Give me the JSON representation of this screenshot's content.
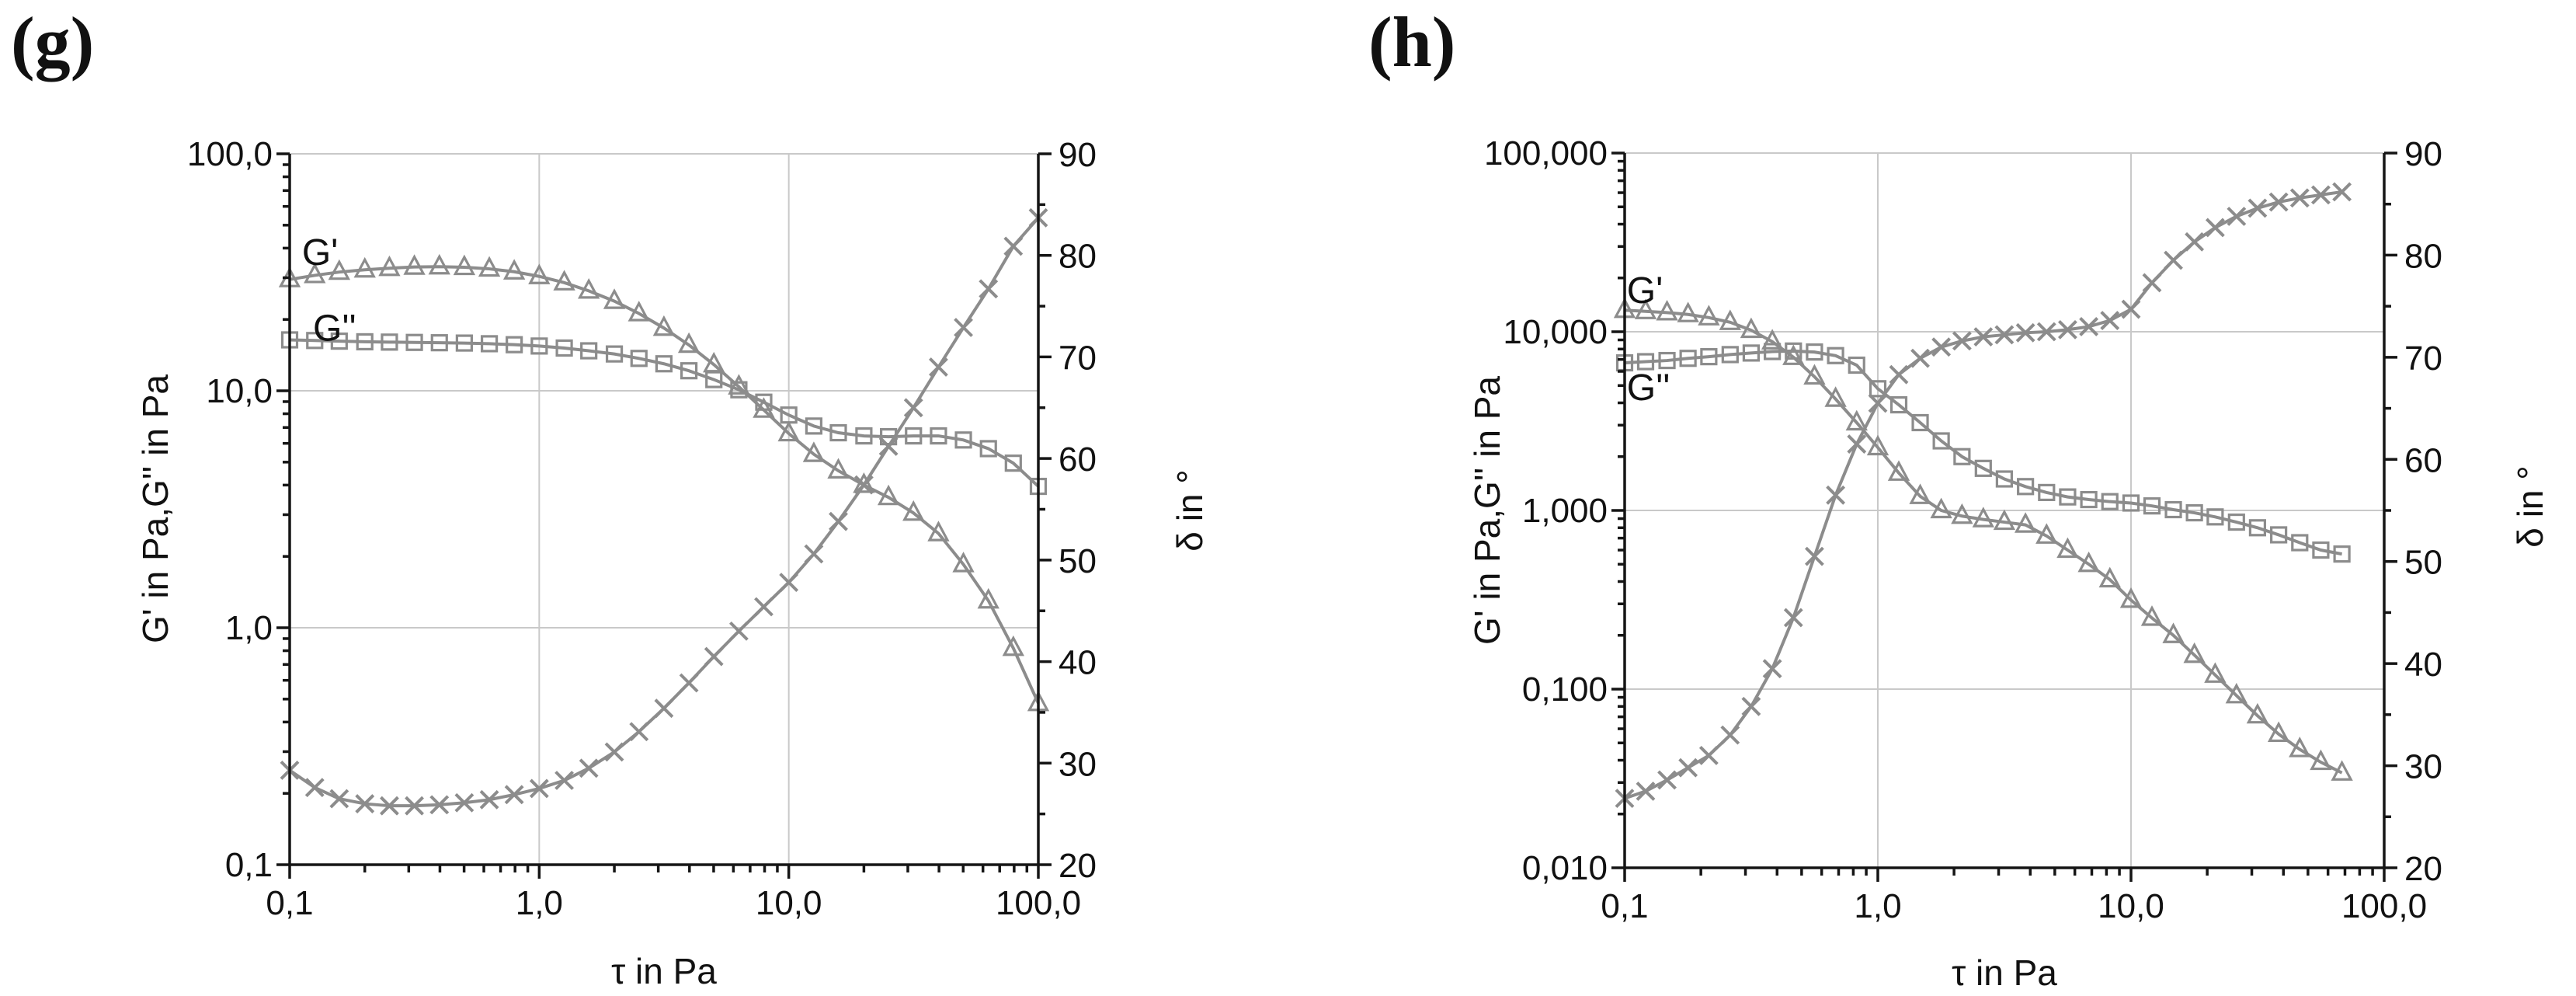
{
  "styles": {
    "background": "#ffffff",
    "series_color": "#8c8c8c",
    "axis_color": "#151515",
    "grid_color": "#c9c9c9",
    "text_color": "#111111"
  },
  "chart_data": [
    {
      "type": "line",
      "panel_label": "(g)",
      "xlabel": "τ in Pa",
      "ylabel_left": "G' in Pa,G'' in Pa",
      "ylabel_right": "δ in °",
      "x_axis": {
        "scale": "log",
        "min": 0.1,
        "max": 100,
        "tick_values": [
          0.1,
          1,
          10,
          100
        ],
        "tick_labels": [
          "0,1",
          "1,0",
          "10,0",
          "100,0"
        ],
        "gridline_values": [
          1,
          10
        ]
      },
      "y_left_axis": {
        "scale": "log",
        "min": 0.1,
        "max": 100,
        "tick_values": [
          100,
          10,
          1,
          0.1
        ],
        "tick_labels": [
          "100,0",
          "10,0",
          "1,0",
          "0,1"
        ],
        "gridline_values": [
          100,
          10,
          1
        ]
      },
      "y_right_axis": {
        "scale": "linear",
        "min": 20,
        "max": 90,
        "tick_step": 10,
        "minor_step": 5,
        "tick_values": [
          90,
          80,
          70,
          60,
          50,
          40,
          30,
          20
        ],
        "tick_labels": [
          "90",
          "80",
          "70",
          "60",
          "50",
          "40",
          "30",
          "20"
        ]
      },
      "annotations": [
        {
          "text": "G'",
          "x": 0.112,
          "y": 34
        },
        {
          "text": "G''",
          "x": 0.124,
          "y": 16.3
        }
      ],
      "series": [
        {
          "name": "G-prime",
          "label": "G'",
          "marker": "triangle",
          "y_axis": "left",
          "x": [
            0.1,
            0.126,
            0.158,
            0.2,
            0.251,
            0.316,
            0.398,
            0.501,
            0.631,
            0.794,
            1.0,
            1.26,
            1.58,
            2.0,
            2.51,
            3.16,
            3.98,
            5.01,
            6.31,
            7.94,
            10,
            12.6,
            15.8,
            20,
            25.1,
            31.6,
            39.8,
            50.1,
            63.1,
            79.4,
            100
          ],
          "y": [
            29.5,
            30.7,
            31.7,
            32.4,
            32.9,
            33.3,
            33.4,
            33.2,
            32.7,
            31.8,
            30.4,
            28.6,
            26.4,
            23.9,
            21.2,
            18.4,
            15.6,
            12.9,
            10.4,
            8.3,
            6.6,
            5.4,
            4.6,
            4.0,
            3.55,
            3.05,
            2.5,
            1.85,
            1.3,
            0.82,
            0.48
          ]
        },
        {
          "name": "G-double-prime",
          "label": "G''",
          "marker": "square",
          "y_axis": "left",
          "x": [
            0.1,
            0.126,
            0.158,
            0.2,
            0.251,
            0.316,
            0.398,
            0.501,
            0.631,
            0.794,
            1.0,
            1.26,
            1.58,
            2.0,
            2.51,
            3.16,
            3.98,
            5.01,
            6.31,
            7.94,
            10,
            12.6,
            15.8,
            20,
            25.1,
            31.6,
            39.8,
            50.1,
            63.1,
            79.4,
            100
          ],
          "y": [
            16.4,
            16.3,
            16.2,
            16.1,
            16.05,
            16.0,
            15.95,
            15.9,
            15.8,
            15.65,
            15.45,
            15.15,
            14.75,
            14.3,
            13.7,
            13.0,
            12.15,
            11.15,
            10.1,
            8.95,
            7.9,
            7.1,
            6.65,
            6.45,
            6.4,
            6.45,
            6.45,
            6.2,
            5.7,
            4.95,
            3.95
          ]
        },
        {
          "name": "delta",
          "label": "δ",
          "marker": "x",
          "y_axis": "right",
          "x": [
            0.1,
            0.126,
            0.158,
            0.2,
            0.251,
            0.316,
            0.398,
            0.501,
            0.631,
            0.794,
            1.0,
            1.26,
            1.58,
            2.0,
            2.51,
            3.16,
            3.98,
            5.01,
            6.31,
            7.94,
            10,
            12.6,
            15.8,
            20,
            25.1,
            31.6,
            39.8,
            50.1,
            63.1,
            79.4,
            100
          ],
          "y": [
            29.3,
            27.6,
            26.5,
            26.0,
            25.8,
            25.8,
            25.9,
            26.1,
            26.4,
            26.9,
            27.5,
            28.3,
            29.5,
            31.1,
            33.1,
            35.4,
            37.9,
            40.5,
            43.0,
            45.4,
            47.8,
            50.6,
            53.8,
            57.4,
            61.2,
            65.0,
            69.0,
            72.9,
            76.7,
            80.9,
            83.7
          ]
        }
      ]
    },
    {
      "type": "line",
      "panel_label": "(h)",
      "xlabel": "τ in Pa",
      "ylabel_left": "G' in Pa,G'' in Pa",
      "ylabel_right": "δ in °",
      "x_axis": {
        "scale": "log",
        "min": 0.1,
        "max": 100,
        "tick_values": [
          0.1,
          1,
          10,
          100
        ],
        "tick_labels": [
          "0,1",
          "1,0",
          "10,0",
          "100,0"
        ],
        "gridline_values": [
          1,
          10
        ]
      },
      "y_left_axis": {
        "scale": "log",
        "min": 0.01,
        "max": 100,
        "tick_values": [
          100,
          10,
          1,
          0.1,
          0.01
        ],
        "tick_labels": [
          "100,000",
          "10,000",
          "1,000",
          "0,100",
          "0,010"
        ],
        "gridline_values": [
          100,
          10,
          1,
          0.1
        ]
      },
      "y_right_axis": {
        "scale": "linear",
        "min": 20,
        "max": 90,
        "tick_step": 10,
        "minor_step": 5,
        "tick_values": [
          90,
          80,
          70,
          60,
          50,
          40,
          30,
          20
        ],
        "tick_labels": [
          "90",
          "80",
          "70",
          "60",
          "50",
          "40",
          "30",
          "20"
        ]
      },
      "annotations": [
        {
          "text": "G'",
          "x": 0.102,
          "y": 14.5
        },
        {
          "text": "G''",
          "x": 0.102,
          "y": 4.15
        }
      ],
      "series": [
        {
          "name": "G-prime",
          "label": "G'",
          "marker": "triangle",
          "y_axis": "left",
          "x": [
            0.1,
            0.121,
            0.147,
            0.178,
            0.215,
            0.261,
            0.316,
            0.383,
            0.464,
            0.562,
            0.681,
            0.825,
            1.0,
            1.21,
            1.47,
            1.78,
            2.15,
            2.61,
            3.16,
            3.83,
            4.64,
            5.62,
            6.81,
            8.25,
            10,
            12.1,
            14.7,
            17.8,
            21.5,
            26.1,
            31.6,
            38.3,
            46.4,
            56.2,
            68.1
          ],
          "y": [
            13.2,
            13.0,
            12.8,
            12.5,
            12.0,
            11.3,
            10.2,
            8.8,
            7.2,
            5.6,
            4.2,
            3.1,
            2.25,
            1.62,
            1.2,
            1.0,
            0.93,
            0.89,
            0.86,
            0.83,
            0.72,
            0.6,
            0.5,
            0.41,
            0.315,
            0.25,
            0.2,
            0.155,
            0.12,
            0.092,
            0.071,
            0.056,
            0.046,
            0.039,
            0.034
          ]
        },
        {
          "name": "G-double-prime",
          "label": "G''",
          "marker": "square",
          "y_axis": "left",
          "x": [
            0.1,
            0.121,
            0.147,
            0.178,
            0.215,
            0.261,
            0.316,
            0.383,
            0.464,
            0.562,
            0.681,
            0.825,
            1.0,
            1.21,
            1.47,
            1.78,
            2.15,
            2.61,
            3.16,
            3.83,
            4.64,
            5.62,
            6.81,
            8.25,
            10,
            12.1,
            14.7,
            17.8,
            21.5,
            26.1,
            31.6,
            38.3,
            46.4,
            56.2,
            68.1
          ],
          "y": [
            6.7,
            6.8,
            6.9,
            7.1,
            7.25,
            7.45,
            7.6,
            7.75,
            7.8,
            7.7,
            7.35,
            6.5,
            4.8,
            3.9,
            3.1,
            2.45,
            2.0,
            1.72,
            1.5,
            1.36,
            1.26,
            1.19,
            1.15,
            1.12,
            1.1,
            1.06,
            1.01,
            0.97,
            0.92,
            0.86,
            0.8,
            0.73,
            0.66,
            0.6,
            0.57
          ]
        },
        {
          "name": "delta",
          "label": "δ",
          "marker": "x",
          "y_axis": "right",
          "x": [
            0.1,
            0.121,
            0.147,
            0.178,
            0.215,
            0.261,
            0.316,
            0.383,
            0.464,
            0.562,
            0.681,
            0.825,
            1.0,
            1.21,
            1.47,
            1.78,
            2.15,
            2.61,
            3.16,
            3.83,
            4.64,
            5.62,
            6.81,
            8.25,
            10,
            12.1,
            14.7,
            17.8,
            21.5,
            26.1,
            31.6,
            38.3,
            46.4,
            56.2,
            68.1
          ],
          "y": [
            26.8,
            27.5,
            28.6,
            29.8,
            31.0,
            33.0,
            35.8,
            39.5,
            44.5,
            50.5,
            56.5,
            61.5,
            65.5,
            68.3,
            69.9,
            71.0,
            71.6,
            72.0,
            72.2,
            72.4,
            72.5,
            72.7,
            73.0,
            73.6,
            74.7,
            77.3,
            79.5,
            81.3,
            82.7,
            83.8,
            84.6,
            85.2,
            85.6,
            85.9,
            86.2
          ]
        }
      ]
    }
  ]
}
